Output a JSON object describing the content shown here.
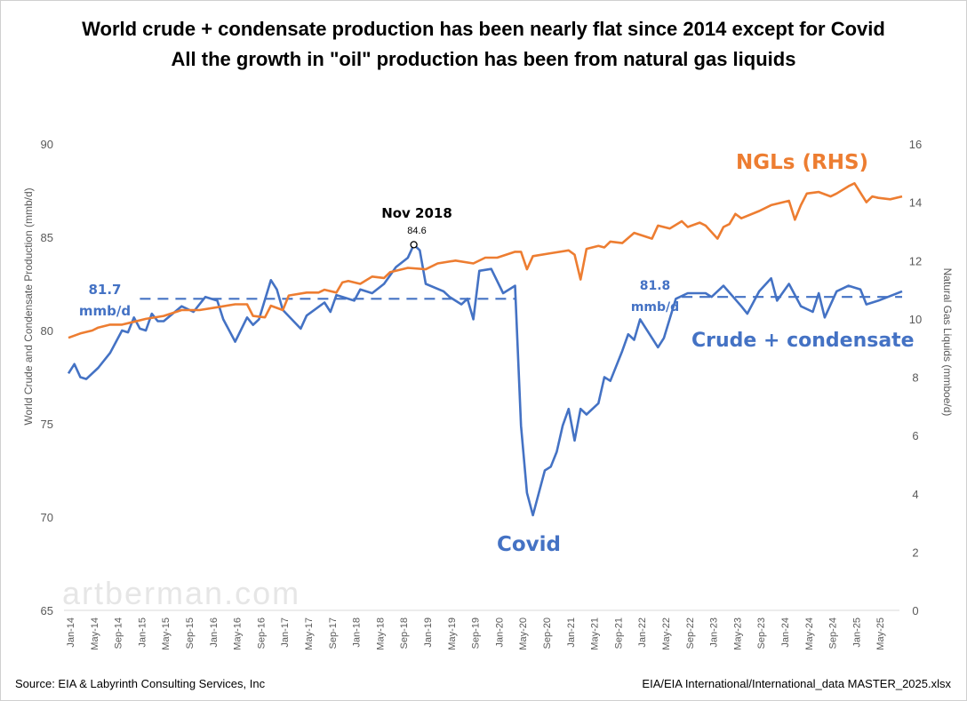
{
  "chart_data": {
    "type": "line",
    "title": "World crude + condensate production has been nearly flat since 2014 except for Covid",
    "subtitle": "All the growth in \"oil\" production has been from natural gas liquids",
    "ylabel": "World Crude and Condensate Production (mmb/d)",
    "y2label": "Natural Gas Liquids (mmboe/d)",
    "ylim": [
      65,
      90
    ],
    "y2lim": [
      0,
      16
    ],
    "yticks": [
      65,
      70,
      75,
      80,
      85,
      90
    ],
    "y2ticks": [
      0,
      2,
      4,
      6,
      8,
      10,
      12,
      14,
      16
    ],
    "x_unit": "months since Jan-2014",
    "xticks": [
      "Jan-14",
      "May-14",
      "Sep-14",
      "Jan-15",
      "May-15",
      "Sep-15",
      "Jan-16",
      "May-16",
      "Sep-16",
      "Jan-17",
      "May-17",
      "Sep-17",
      "Jan-18",
      "May-18",
      "Sep-18",
      "Jan-19",
      "May-19",
      "Sep-19",
      "Jan-20",
      "May-20",
      "Sep-20",
      "Jan-21",
      "May-21",
      "Sep-21",
      "Jan-22",
      "May-22",
      "Sep-22",
      "Jan-23",
      "May-23",
      "Sep-23",
      "Jan-24",
      "May-24",
      "Sep-24",
      "Jan-25",
      "May-25"
    ],
    "grid": false,
    "series": [
      {
        "name": "Crude + condensate",
        "axis": "left",
        "color": "#4472C4",
        "points": [
          [
            0,
            77.7
          ],
          [
            1,
            78.2
          ],
          [
            2,
            77.5
          ],
          [
            3,
            77.4
          ],
          [
            5,
            78.0
          ],
          [
            7,
            78.8
          ],
          [
            9,
            80.0
          ],
          [
            10,
            79.9
          ],
          [
            11,
            80.7
          ],
          [
            12,
            80.1
          ],
          [
            13,
            80.0
          ],
          [
            14,
            80.9
          ],
          [
            15,
            80.5
          ],
          [
            16,
            80.5
          ],
          [
            19,
            81.3
          ],
          [
            21,
            81.0
          ],
          [
            23,
            81.8
          ],
          [
            25,
            81.6
          ],
          [
            26,
            80.6
          ],
          [
            28,
            79.4
          ],
          [
            30,
            80.7
          ],
          [
            31,
            80.3
          ],
          [
            32,
            80.6
          ],
          [
            34,
            82.7
          ],
          [
            35,
            82.2
          ],
          [
            36,
            81.1
          ],
          [
            39,
            80.1
          ],
          [
            40,
            80.8
          ],
          [
            43,
            81.5
          ],
          [
            44,
            81.0
          ],
          [
            45,
            81.9
          ],
          [
            48,
            81.6
          ],
          [
            49,
            82.2
          ],
          [
            51,
            82.0
          ],
          [
            53,
            82.5
          ],
          [
            55,
            83.4
          ],
          [
            57,
            83.9
          ],
          [
            58,
            84.6
          ],
          [
            59,
            84.3
          ],
          [
            60,
            82.5
          ],
          [
            63,
            82.1
          ],
          [
            64,
            81.8
          ],
          [
            66,
            81.4
          ],
          [
            67,
            81.7
          ],
          [
            68,
            80.6
          ],
          [
            69,
            83.2
          ],
          [
            71,
            83.3
          ],
          [
            73,
            82.0
          ],
          [
            75,
            82.4
          ],
          [
            76,
            74.9
          ],
          [
            77,
            71.3
          ],
          [
            78,
            70.1
          ],
          [
            79,
            71.3
          ],
          [
            80,
            72.5
          ],
          [
            81,
            72.7
          ],
          [
            82,
            73.5
          ],
          [
            83,
            74.9
          ],
          [
            84,
            75.8
          ],
          [
            85,
            74.1
          ],
          [
            86,
            75.8
          ],
          [
            87,
            75.5
          ],
          [
            89,
            76.1
          ],
          [
            90,
            77.5
          ],
          [
            91,
            77.3
          ],
          [
            93,
            78.9
          ],
          [
            94,
            79.8
          ],
          [
            95,
            79.5
          ],
          [
            96,
            80.6
          ],
          [
            97,
            80.1
          ],
          [
            99,
            79.1
          ],
          [
            100,
            79.6
          ],
          [
            102,
            81.7
          ],
          [
            104,
            82.0
          ],
          [
            107,
            82.0
          ],
          [
            108,
            81.8
          ],
          [
            110,
            82.4
          ],
          [
            113,
            81.3
          ],
          [
            114,
            80.9
          ],
          [
            116,
            82.1
          ],
          [
            118,
            82.8
          ],
          [
            119,
            81.6
          ],
          [
            121,
            82.5
          ],
          [
            123,
            81.3
          ],
          [
            125,
            81.0
          ],
          [
            126,
            82.0
          ],
          [
            127,
            80.7
          ],
          [
            129,
            82.1
          ],
          [
            131,
            82.4
          ],
          [
            133,
            82.2
          ],
          [
            134,
            81.4
          ],
          [
            136,
            81.6
          ],
          [
            140,
            82.1
          ]
        ]
      },
      {
        "name": "NGLs (RHS)",
        "axis": "right",
        "color": "#ED7D31",
        "points": [
          [
            0,
            9.35
          ],
          [
            2,
            9.5
          ],
          [
            4,
            9.6
          ],
          [
            5,
            9.7
          ],
          [
            7,
            9.8
          ],
          [
            9,
            9.8
          ],
          [
            11,
            9.9
          ],
          [
            13,
            10.0
          ],
          [
            16,
            10.1
          ],
          [
            19,
            10.3
          ],
          [
            22,
            10.3
          ],
          [
            25,
            10.4
          ],
          [
            28,
            10.5
          ],
          [
            30,
            10.5
          ],
          [
            31,
            10.1
          ],
          [
            33,
            10.05
          ],
          [
            34,
            10.45
          ],
          [
            36,
            10.3
          ],
          [
            37,
            10.8
          ],
          [
            40,
            10.9
          ],
          [
            42,
            10.9
          ],
          [
            43,
            11.0
          ],
          [
            45,
            10.9
          ],
          [
            46,
            11.25
          ],
          [
            47,
            11.3
          ],
          [
            49,
            11.2
          ],
          [
            51,
            11.45
          ],
          [
            53,
            11.4
          ],
          [
            54,
            11.6
          ],
          [
            56,
            11.7
          ],
          [
            57,
            11.75
          ],
          [
            60,
            11.7
          ],
          [
            62,
            11.9
          ],
          [
            65,
            12.0
          ],
          [
            68,
            11.9
          ],
          [
            70,
            12.1
          ],
          [
            72,
            12.1
          ],
          [
            75,
            12.3
          ],
          [
            76,
            12.3
          ],
          [
            77,
            11.7
          ],
          [
            78,
            12.15
          ],
          [
            81,
            12.25
          ],
          [
            84,
            12.35
          ],
          [
            85,
            12.2
          ],
          [
            86,
            11.35
          ],
          [
            87,
            12.4
          ],
          [
            89,
            12.5
          ],
          [
            90,
            12.45
          ],
          [
            91,
            12.65
          ],
          [
            93,
            12.6
          ],
          [
            95,
            12.95
          ],
          [
            98,
            12.75
          ],
          [
            99,
            13.2
          ],
          [
            101,
            13.1
          ],
          [
            103,
            13.35
          ],
          [
            104,
            13.15
          ],
          [
            106,
            13.3
          ],
          [
            107,
            13.2
          ],
          [
            109,
            12.75
          ],
          [
            110,
            13.15
          ],
          [
            111,
            13.25
          ],
          [
            112,
            13.6
          ],
          [
            113,
            13.45
          ],
          [
            116,
            13.7
          ],
          [
            118,
            13.9
          ],
          [
            121,
            14.05
          ],
          [
            122,
            13.4
          ],
          [
            123,
            13.9
          ],
          [
            124,
            14.3
          ],
          [
            126,
            14.35
          ],
          [
            128,
            14.2
          ],
          [
            129,
            14.3
          ],
          [
            131,
            14.55
          ],
          [
            132,
            14.65
          ],
          [
            134,
            14.0
          ],
          [
            135,
            14.2
          ],
          [
            136,
            14.15
          ],
          [
            138,
            14.1
          ],
          [
            140,
            14.2
          ]
        ]
      }
    ],
    "reference_lines": [
      {
        "value": 81.7,
        "from": 12,
        "to": 75,
        "label_value": "81.7",
        "label_unit": "mmb/d"
      },
      {
        "value": 81.8,
        "from": 103,
        "to": 140,
        "label_value": "81.8",
        "label_unit": "mmb/d"
      }
    ],
    "annotations": {
      "peak_label": "Nov 2018",
      "peak_value": "84.6",
      "peak_month": 58,
      "covid": "Covid",
      "ngl_legend": "NGLs (RHS)",
      "crude_legend": "Crude + condensate"
    }
  },
  "watermark": "artberman.com",
  "footer": {
    "source": "Source: EIA &  Labyrinth Consulting Services, Inc",
    "file": "EIA/EIA International/International_data MASTER_2025.xlsx"
  }
}
